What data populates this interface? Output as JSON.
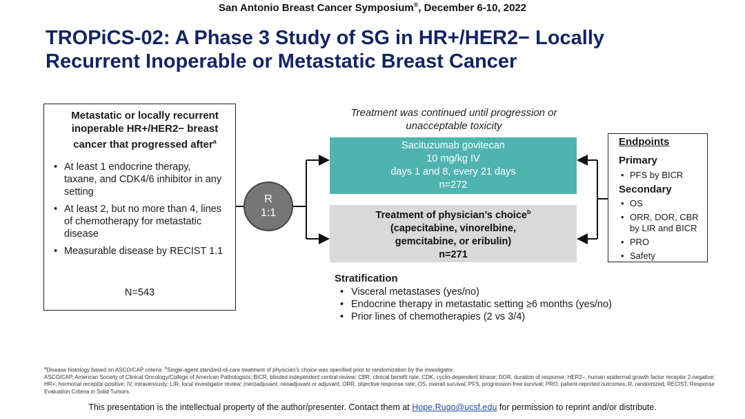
{
  "header": {
    "conference": "San Antonio Breast Cancer Symposium",
    "conference_mark": "®",
    "conference_dates": ", December 6-10, 2022",
    "title_line1": "TROPiCS-02: A Phase 3 Study of SG in HR+/HER2− Locally",
    "title_line2": "Recurrent Inoperable or Metastatic Breast Cancer"
  },
  "eligibility": {
    "heading": "Metastatic or locally recurrent inoperable HR+/HER2− breast cancer that progressed after",
    "heading_sup": "a",
    "criteria": [
      "At least 1 endocrine therapy, taxane, and CDK4/6 inhibitor in any setting",
      "At least 2, but no more than 4, lines of chemotherapy for metastatic disease",
      "Measurable disease by RECIST 1.1"
    ],
    "n": "N=543"
  },
  "randomization": {
    "label": "R",
    "ratio": "1:1"
  },
  "treatment_note": "Treatment was continued until progression or unacceptable toxicity",
  "arms": {
    "sg": {
      "name": "Sacituzumab govitecan",
      "dose": "10 mg/kg IV",
      "schedule": "days 1 and 8, every 21 days",
      "n": "n=272",
      "color": "#4fb3b0"
    },
    "tpc": {
      "name": "Treatment of physician’s choice",
      "name_sup": "b",
      "drugs_line1": "(capecitabine, vinorelbine,",
      "drugs_line2": "gemcitabine, or eribulin)",
      "n": "n=271",
      "color": "#d9d9d9"
    }
  },
  "endpoints": {
    "title": "Endpoints",
    "primary_label": "Primary",
    "primary": [
      "PFS by BICR"
    ],
    "secondary_label": "Secondary",
    "secondary": [
      "OS",
      "ORR, DOR, CBR by LIR and BICR",
      "PRO",
      "Safety"
    ]
  },
  "stratification": {
    "title": "Stratification",
    "items": [
      "Visceral metastases (yes/no)",
      "Endocrine therapy in metastatic setting ≥6 months (yes/no)",
      "Prior lines of chemotherapies (2 vs 3/4)"
    ]
  },
  "footnotes": {
    "note_a_mark": "a",
    "note_a": "Disease histology based on ASCO/CAP criteria. ",
    "note_b_mark": "b",
    "note_b": "Single-agent standard-of-care treatment of physician’s choice was specified prior to randomization by the investigator.",
    "abbreviations": "ASCO/CAP, American Society of Clinical Oncology/College of American Pathologists; BICR, blinded independent central review; CBR, clinical benefit rate; CDK, cyclin-dependent kinase; DOR, duration of response; HER2–, human epidermal growth factor receptor 2-negative; HR+, hormonal receptor-positive; IV, intravenously; LIR, local investigator review; (neo)adjuvant, neoadjuvant or adjuvant; ORR, objective response rate; OS, overall survival; PFS, progression-free survival; PRO, patient-reported outcomes; R, randomized; RECIST, Response Evaluation Criteria in Solid Tumors."
  },
  "footer": {
    "ip_before": "This presentation is the intellectual property of the author/presenter. Contact them at ",
    "email": "Hope.Rugo@ucsf.edu",
    "ip_after": " for permission to reprint and/or distribute."
  }
}
